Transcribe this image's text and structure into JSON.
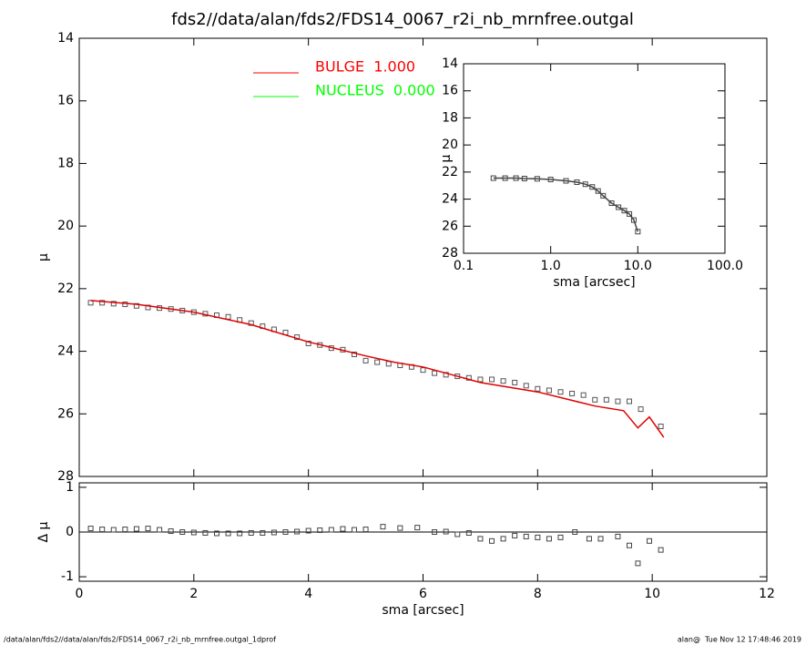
{
  "chart_data": [
    {
      "type": "scatter",
      "title": "fds2//data/alan/fds2/FDS14_0067_r2i_nb_mrnfree.outgal",
      "ylabel": "μ",
      "xlim": [
        0,
        12
      ],
      "ylim": [
        28,
        14
      ],
      "xticks": [
        0,
        2,
        4,
        6,
        8,
        10,
        12
      ],
      "xtick_labels": false,
      "yticks": [
        14,
        16,
        18,
        20,
        22,
        24,
        26,
        28
      ],
      "legend": [
        {
          "label": "BULGE  1.000",
          "color": "#ff0000"
        },
        {
          "label": "NUCLEUS  0.000",
          "color": "#00ff00"
        }
      ],
      "series": [
        {
          "color": "#555555",
          "marker": "square",
          "x": [
            0.2,
            0.4,
            0.6,
            0.8,
            1.0,
            1.2,
            1.4,
            1.6,
            1.8,
            2.0,
            2.2,
            2.4,
            2.6,
            2.8,
            3.0,
            3.2,
            3.4,
            3.6,
            3.8,
            4.0,
            4.2,
            4.4,
            4.6,
            4.8,
            5.0,
            5.2,
            5.4,
            5.6,
            5.8,
            6.0,
            6.2,
            6.4,
            6.6,
            6.8,
            7.0,
            7.2,
            7.4,
            7.6,
            7.8,
            8.0,
            8.2,
            8.4,
            8.6,
            8.8,
            9.0,
            9.2,
            9.4,
            9.6,
            9.8,
            10.15
          ],
          "values": [
            22.45,
            22.45,
            22.48,
            22.5,
            22.55,
            22.6,
            22.62,
            22.65,
            22.7,
            22.75,
            22.8,
            22.85,
            22.9,
            23.0,
            23.1,
            23.2,
            23.3,
            23.4,
            23.55,
            23.75,
            23.8,
            23.9,
            23.95,
            24.1,
            24.3,
            24.35,
            24.4,
            24.45,
            24.5,
            24.6,
            24.7,
            24.75,
            24.8,
            24.85,
            24.9,
            24.9,
            24.95,
            25.0,
            25.1,
            25.2,
            25.25,
            25.3,
            25.35,
            25.4,
            25.55,
            25.55,
            25.6,
            25.6,
            25.85,
            26.4
          ]
        },
        {
          "color": "#e00000",
          "line": true,
          "x": [
            0.2,
            1.0,
            2.0,
            3.0,
            4.0,
            5.0,
            5.5,
            6.0,
            6.5,
            7.0,
            8.0,
            9.0,
            9.5,
            9.75,
            9.95,
            10.2
          ],
          "values": [
            22.38,
            22.5,
            22.75,
            23.15,
            23.7,
            24.15,
            24.35,
            24.5,
            24.75,
            25.0,
            25.3,
            25.75,
            25.9,
            26.45,
            26.1,
            26.75
          ]
        }
      ]
    },
    {
      "type": "scatter",
      "ylabel": "μ",
      "xlabel": "sma [arcsec]",
      "xscale": "log",
      "xlim": [
        0.1,
        100
      ],
      "ylim": [
        28,
        14
      ],
      "xticks": [
        0.1,
        {
          "value": 1,
          "label": "1.0"
        },
        {
          "value": 10,
          "label": "10.0"
        },
        {
          "value": 100,
          "label": "100.0"
        }
      ],
      "yticks": [
        14,
        16,
        18,
        20,
        22,
        24,
        26,
        28
      ],
      "series": [
        {
          "color": "#444444",
          "marker": "square",
          "line": true,
          "x": [
            0.22,
            0.3,
            0.4,
            0.5,
            0.7,
            1,
            1.5,
            2,
            2.5,
            3,
            3.5,
            4,
            5,
            6,
            7,
            8,
            9,
            10
          ],
          "values": [
            22.45,
            22.45,
            22.45,
            22.48,
            22.5,
            22.55,
            22.65,
            22.75,
            22.9,
            23.1,
            23.4,
            23.75,
            24.3,
            24.6,
            24.85,
            25.1,
            25.55,
            26.4
          ]
        }
      ]
    },
    {
      "type": "scatter",
      "ylabel": "Δ μ",
      "xlabel": "sma [arcsec]",
      "xlim": [
        0,
        12
      ],
      "ylim": [
        -1.1,
        1.1
      ],
      "xticks": [
        0,
        2,
        4,
        6,
        8,
        10,
        12
      ],
      "yticks": [
        -1,
        0,
        1
      ],
      "hline": 0,
      "series": [
        {
          "color": "#444444",
          "marker": "square",
          "x": [
            0.2,
            0.4,
            0.6,
            0.8,
            1.0,
            1.2,
            1.4,
            1.6,
            1.8,
            2.0,
            2.2,
            2.4,
            2.6,
            2.8,
            3.0,
            3.2,
            3.4,
            3.6,
            3.8,
            4.0,
            4.2,
            4.4,
            4.6,
            4.8,
            5.0,
            5.3,
            5.6,
            5.9,
            6.2,
            6.4,
            6.6,
            6.8,
            7.0,
            7.2,
            7.4,
            7.6,
            7.8,
            8.0,
            8.2,
            8.4,
            8.65,
            8.9,
            9.1,
            9.4,
            9.6,
            9.75,
            9.95,
            10.15
          ],
          "values": [
            0.08,
            0.06,
            0.05,
            0.06,
            0.07,
            0.08,
            0.05,
            0.02,
            0.0,
            -0.01,
            -0.02,
            -0.03,
            -0.03,
            -0.03,
            -0.02,
            -0.02,
            -0.01,
            0.0,
            0.01,
            0.03,
            0.04,
            0.05,
            0.07,
            0.05,
            0.06,
            0.12,
            0.09,
            0.1,
            0.0,
            0.01,
            -0.05,
            -0.02,
            -0.15,
            -0.2,
            -0.15,
            -0.08,
            -0.1,
            -0.12,
            -0.15,
            -0.12,
            0.0,
            -0.15,
            -0.15,
            -0.1,
            -0.3,
            -0.7,
            -0.2,
            -0.4
          ]
        }
      ]
    }
  ],
  "footer": {
    "left": "/data/alan/fds2//data/alan/fds2/FDS14_0067_r2i_nb_mrnfree.outgal_1dprof",
    "right": "alan@  Tue Nov 12 17:48:46 2019"
  }
}
